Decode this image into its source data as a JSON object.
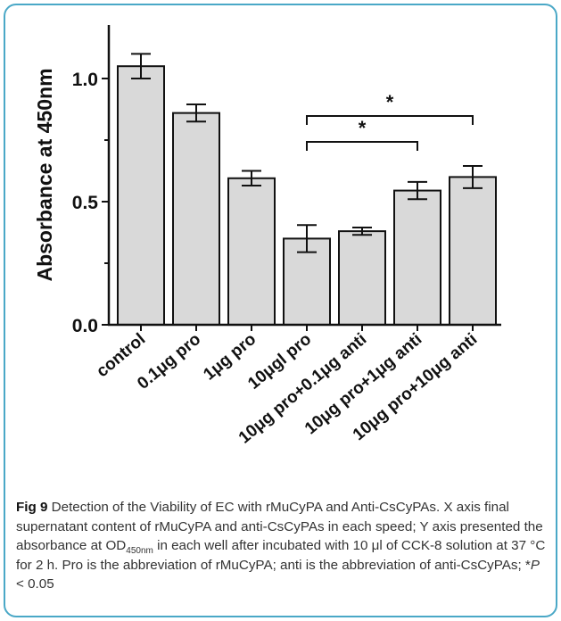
{
  "chart_data": {
    "type": "bar",
    "ylabel": "Absorbance at 450nm",
    "categories": [
      "control",
      "0.1μg pro",
      "1μg pro",
      "10μgl pro",
      "10μg pro+0.1μg anti",
      "10μg pro+1μg anti",
      "10μg pro+10μg anti"
    ],
    "values": [
      1.05,
      0.86,
      0.595,
      0.35,
      0.38,
      0.545,
      0.6
    ],
    "errors": [
      0.05,
      0.035,
      0.03,
      0.055,
      0.015,
      0.035,
      0.045
    ],
    "ylim": [
      0,
      1.25
    ],
    "yticks": [
      "0.0",
      "0.5",
      "1.0"
    ],
    "bar_color": "#d9d9d9",
    "significance": [
      {
        "from": 3,
        "to": 5,
        "label": "*"
      },
      {
        "from": 3,
        "to": 6,
        "label": "*"
      }
    ]
  },
  "caption": {
    "label": "Fig 9",
    "part1": " Detection of the Viability of EC with rMuCyPA and Anti-CsCyPAs. X axis final supernatant content of rMuCyPA and anti-CsCyPAs in each speed; Y axis presented the absorbance at OD",
    "sub": "450nm",
    "part2": " in each well after incubated with 10 μl of CCK-8 solution at 37 °C for 2 h. Pro is the abbreviation of rMuCyPA; anti is the abbreviation of anti-CsCyPAs; *",
    "p_symbol": "P",
    "part3": " < 0.05"
  },
  "colors": {
    "frame": "#4aa8c7"
  }
}
